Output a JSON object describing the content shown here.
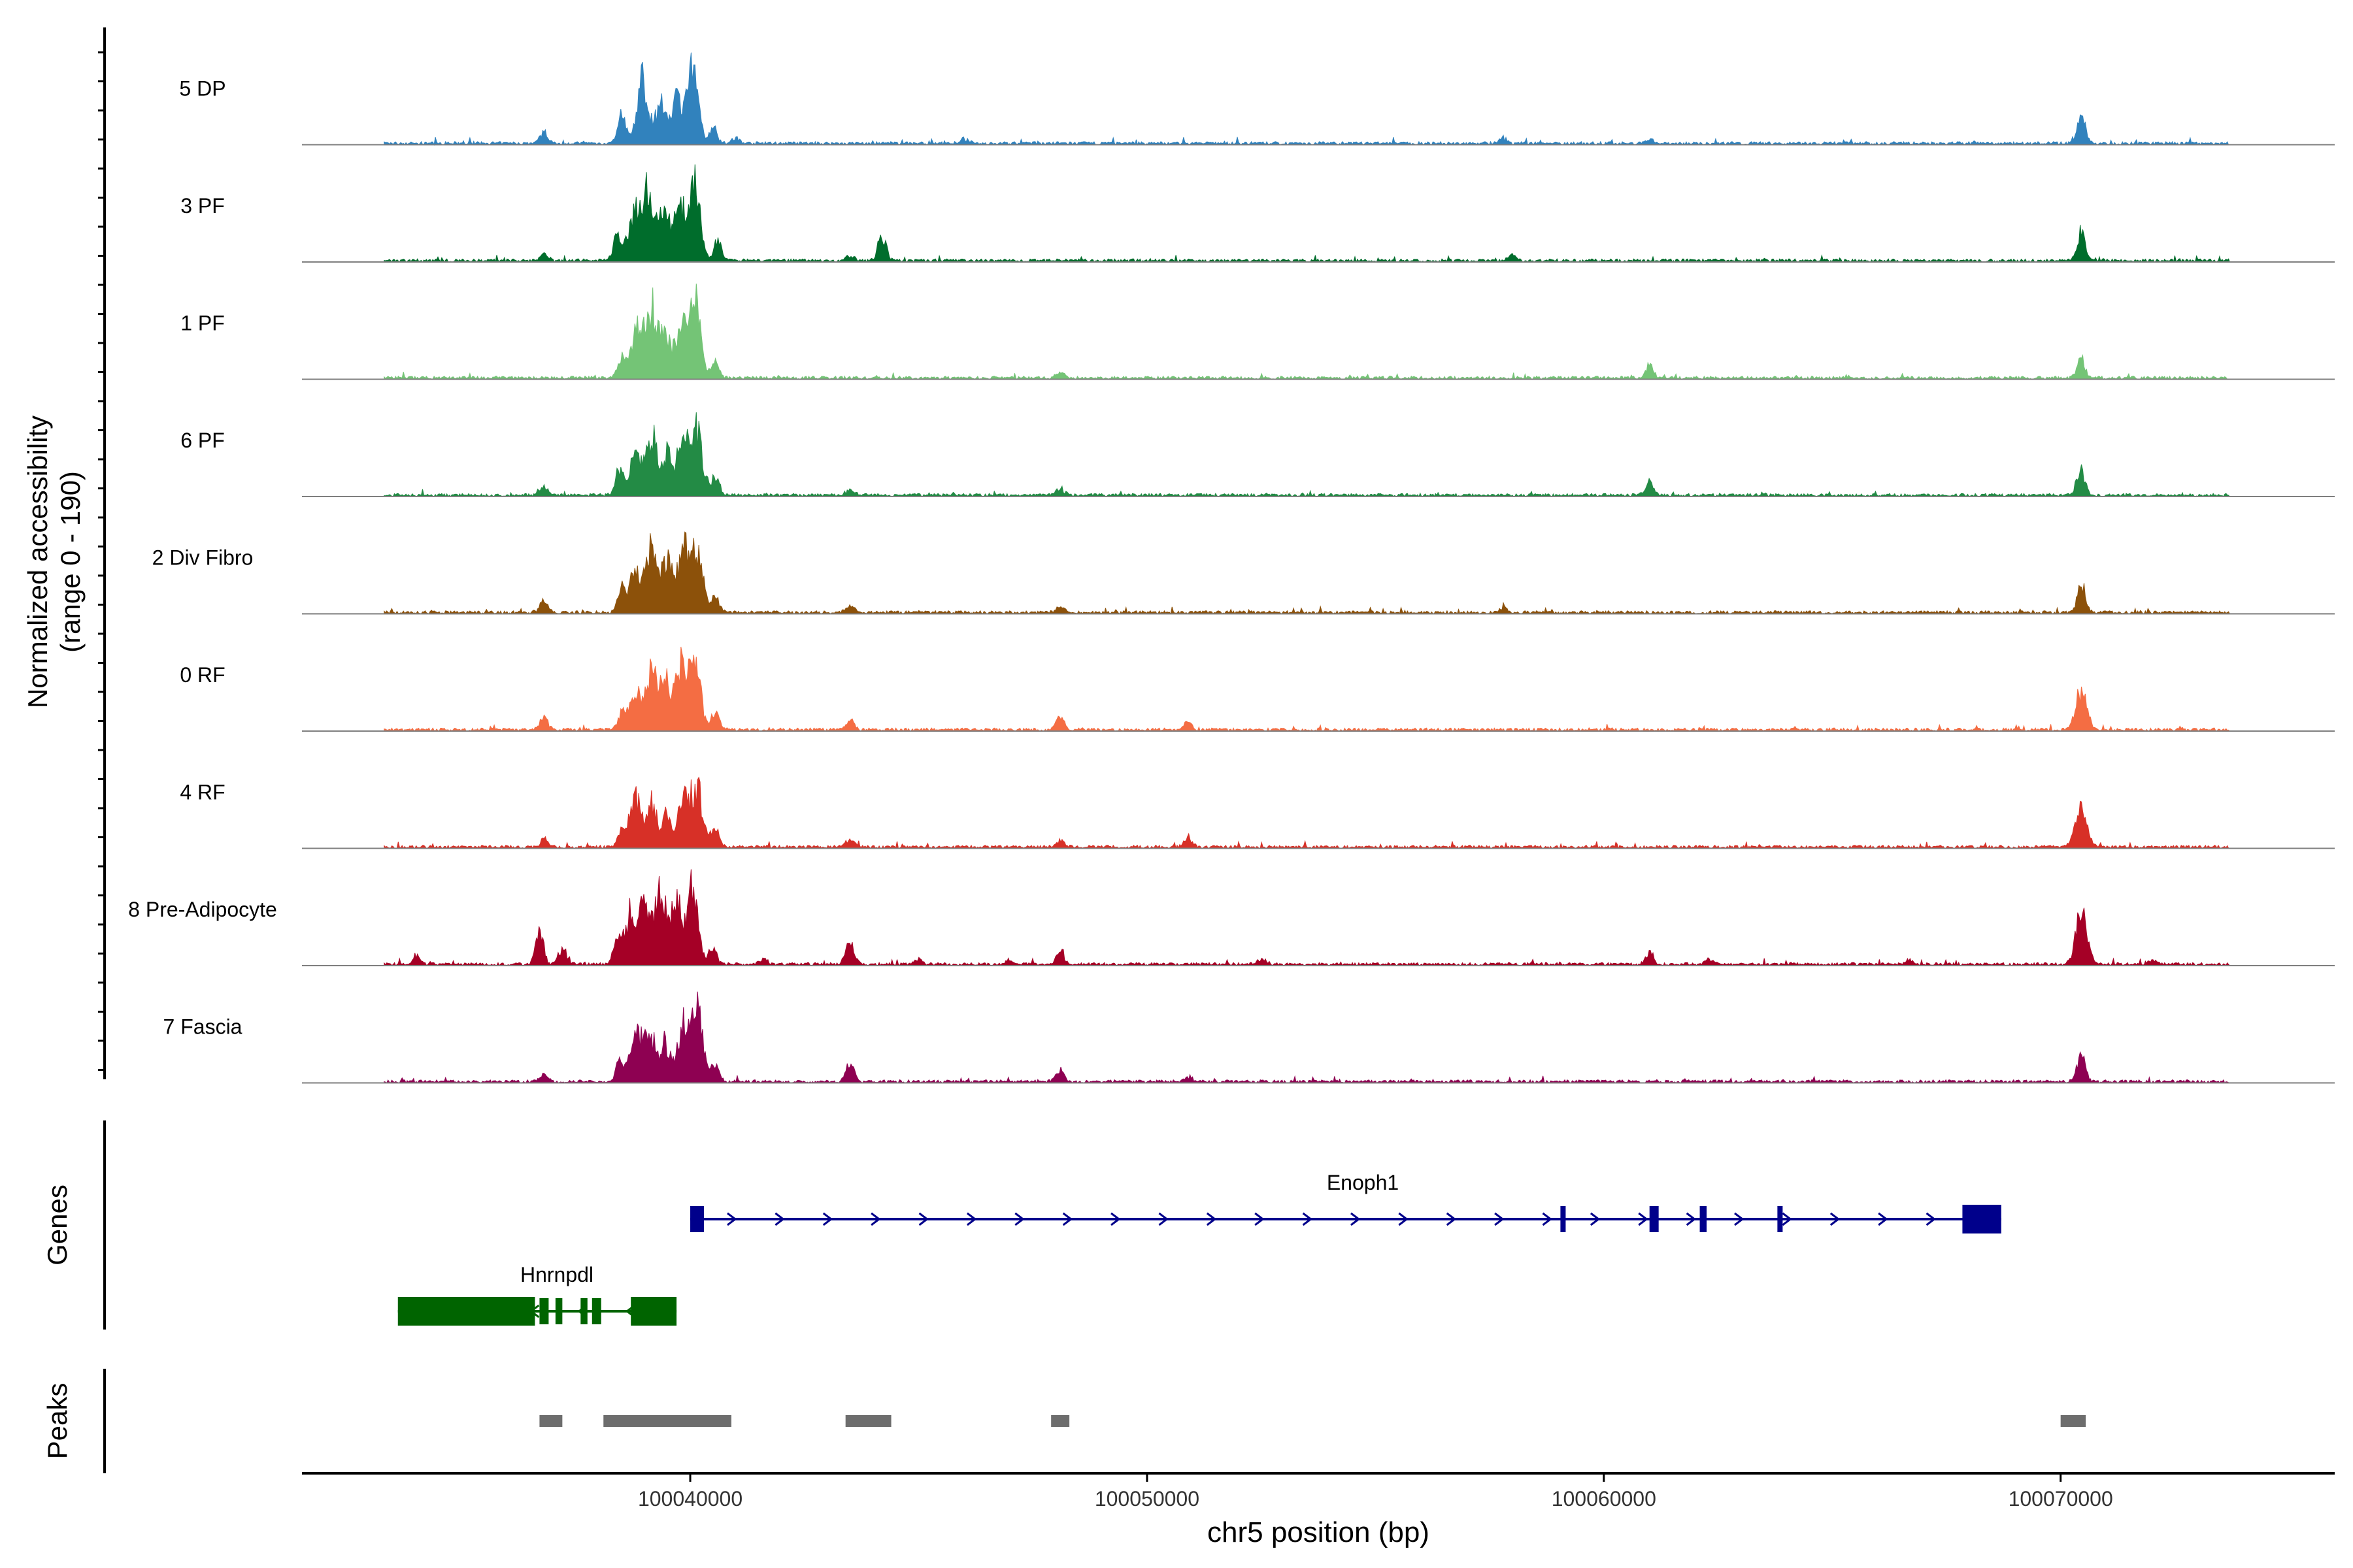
{
  "chart_data": {
    "type": "area",
    "title": "",
    "ylabel": "Normalized accessibility",
    "ylabel_range": "(range 0 - 190)",
    "ylim": [
      0,
      190
    ],
    "xlabel": "chr5 position (bp)",
    "xlim": [
      100031500,
      100076000
    ],
    "xticks": [
      100040000,
      100050000,
      100060000,
      100070000
    ],
    "xtick_labels": [
      "100040000",
      "100050000",
      "100060000",
      "100070000"
    ],
    "signal_span": [
      100033300,
      100073700
    ],
    "tracks": [
      {
        "name": "5 DP",
        "color": "#3182bd",
        "peaks": [
          [
            100036800,
            28
          ],
          [
            100038500,
            60
          ],
          [
            100038950,
            150
          ],
          [
            100039350,
            90
          ],
          [
            100039700,
            110
          ],
          [
            100040050,
            170
          ],
          [
            100040500,
            40
          ],
          [
            100041000,
            12
          ],
          [
            100046000,
            10
          ],
          [
            100057800,
            12
          ],
          [
            100061000,
            10
          ],
          [
            100070450,
            75
          ]
        ]
      },
      {
        "name": "3 PF",
        "color": "#006d2c",
        "peaks": [
          [
            100036800,
            15
          ],
          [
            100038400,
            55
          ],
          [
            100038750,
            110
          ],
          [
            100039050,
            175
          ],
          [
            100039400,
            110
          ],
          [
            100039750,
            140
          ],
          [
            100040100,
            185
          ],
          [
            100040600,
            45
          ],
          [
            100043500,
            12
          ],
          [
            100044200,
            60
          ],
          [
            100058000,
            16
          ],
          [
            100070450,
            70
          ]
        ]
      },
      {
        "name": "1 PF",
        "color": "#74c476",
        "peaks": [
          [
            100038500,
            50
          ],
          [
            100038850,
            125
          ],
          [
            100039150,
            160
          ],
          [
            100039450,
            90
          ],
          [
            100039800,
            120
          ],
          [
            100040100,
            190
          ],
          [
            100040550,
            35
          ],
          [
            100048100,
            14
          ],
          [
            100061000,
            28
          ],
          [
            100070450,
            45
          ]
        ]
      },
      {
        "name": "6 PF",
        "color": "#238b45",
        "peaks": [
          [
            100036800,
            18
          ],
          [
            100038450,
            60
          ],
          [
            100038800,
            110
          ],
          [
            100039150,
            140
          ],
          [
            100039500,
            95
          ],
          [
            100039850,
            140
          ],
          [
            100040150,
            150
          ],
          [
            100040550,
            45
          ],
          [
            100043500,
            14
          ],
          [
            100048100,
            16
          ],
          [
            100061000,
            30
          ],
          [
            100070450,
            62
          ]
        ]
      },
      {
        "name": "2 Div Fibro",
        "color": "#8c510a",
        "peaks": [
          [
            100036800,
            28
          ],
          [
            100038500,
            55
          ],
          [
            100038800,
            100
          ],
          [
            100039150,
            165
          ],
          [
            100039500,
            120
          ],
          [
            100039850,
            150
          ],
          [
            100040150,
            150
          ],
          [
            100040550,
            40
          ],
          [
            100043500,
            18
          ],
          [
            100048100,
            12
          ],
          [
            100057800,
            10
          ],
          [
            100070450,
            70
          ]
        ]
      },
      {
        "name": "0 RF",
        "color": "#f46d43",
        "peaks": [
          [
            100036800,
            30
          ],
          [
            100038500,
            35
          ],
          [
            100038800,
            95
          ],
          [
            100039150,
            130
          ],
          [
            100039450,
            110
          ],
          [
            100039800,
            150
          ],
          [
            100040100,
            170
          ],
          [
            100040550,
            45
          ],
          [
            100043500,
            24
          ],
          [
            100048100,
            32
          ],
          [
            100050900,
            20
          ],
          [
            100070450,
            90
          ]
        ]
      },
      {
        "name": "4 RF",
        "color": "#d73027",
        "peaks": [
          [
            100036800,
            18
          ],
          [
            100038500,
            40
          ],
          [
            100038800,
            115
          ],
          [
            100039150,
            105
          ],
          [
            100039500,
            80
          ],
          [
            100039850,
            125
          ],
          [
            100040150,
            140
          ],
          [
            100040550,
            40
          ],
          [
            100043500,
            18
          ],
          [
            100048100,
            16
          ],
          [
            100050900,
            22
          ],
          [
            100070450,
            95
          ]
        ]
      },
      {
        "name": "8 Pre-Adipocyte",
        "color": "#a50026",
        "peaks": [
          [
            100034000,
            20
          ],
          [
            100036700,
            75
          ],
          [
            100037200,
            40
          ],
          [
            100038400,
            60
          ],
          [
            100038700,
            120
          ],
          [
            100039000,
            150
          ],
          [
            100039350,
            170
          ],
          [
            100039700,
            140
          ],
          [
            100040050,
            185
          ],
          [
            100040500,
            40
          ],
          [
            100041600,
            15
          ],
          [
            100043500,
            50
          ],
          [
            100045000,
            12
          ],
          [
            100047000,
            10
          ],
          [
            100048100,
            32
          ],
          [
            100052500,
            12
          ],
          [
            100061000,
            28
          ],
          [
            100062300,
            12
          ],
          [
            100066700,
            12
          ],
          [
            100070450,
            120
          ],
          [
            100072000,
            10
          ]
        ]
      },
      {
        "name": "7 Fascia",
        "color": "#8e0152",
        "peaks": [
          [
            100036800,
            18
          ],
          [
            100038450,
            45
          ],
          [
            100038800,
            120
          ],
          [
            100039100,
            110
          ],
          [
            100039450,
            90
          ],
          [
            100039850,
            130
          ],
          [
            100040150,
            170
          ],
          [
            100040550,
            40
          ],
          [
            100043500,
            45
          ],
          [
            100048100,
            28
          ],
          [
            100050900,
            12
          ],
          [
            100070450,
            70
          ]
        ]
      }
    ],
    "genes": [
      {
        "name": "Enoph1",
        "color": "#00008b",
        "strand": "+",
        "start": 100040000,
        "end": 100068700,
        "exons": [
          [
            100040000,
            100040300
          ],
          [
            100059050,
            100059150
          ],
          [
            100061000,
            100061200
          ],
          [
            100062100,
            100062250
          ],
          [
            100063800,
            100063900
          ],
          [
            100067850,
            100068700
          ]
        ]
      },
      {
        "name": "Hnrnpdl",
        "color": "#006400",
        "strand": "-",
        "start": 100033600,
        "end": 100039700,
        "exons": [
          [
            100033600,
            100036600
          ],
          [
            100036700,
            100036900
          ],
          [
            100037050,
            100037200
          ],
          [
            100037600,
            100037750
          ],
          [
            100037850,
            100038050
          ],
          [
            100038700,
            100039700
          ]
        ]
      }
    ],
    "peak_regions": [
      [
        100036700,
        100037200
      ],
      [
        100038100,
        100040900
      ],
      [
        100043400,
        100044400
      ],
      [
        100047900,
        100048300
      ],
      [
        100070000,
        100070550
      ]
    ],
    "panel_labels": {
      "genes": "Genes",
      "peaks": "Peaks"
    },
    "peak_color": "#6d6d6d"
  }
}
